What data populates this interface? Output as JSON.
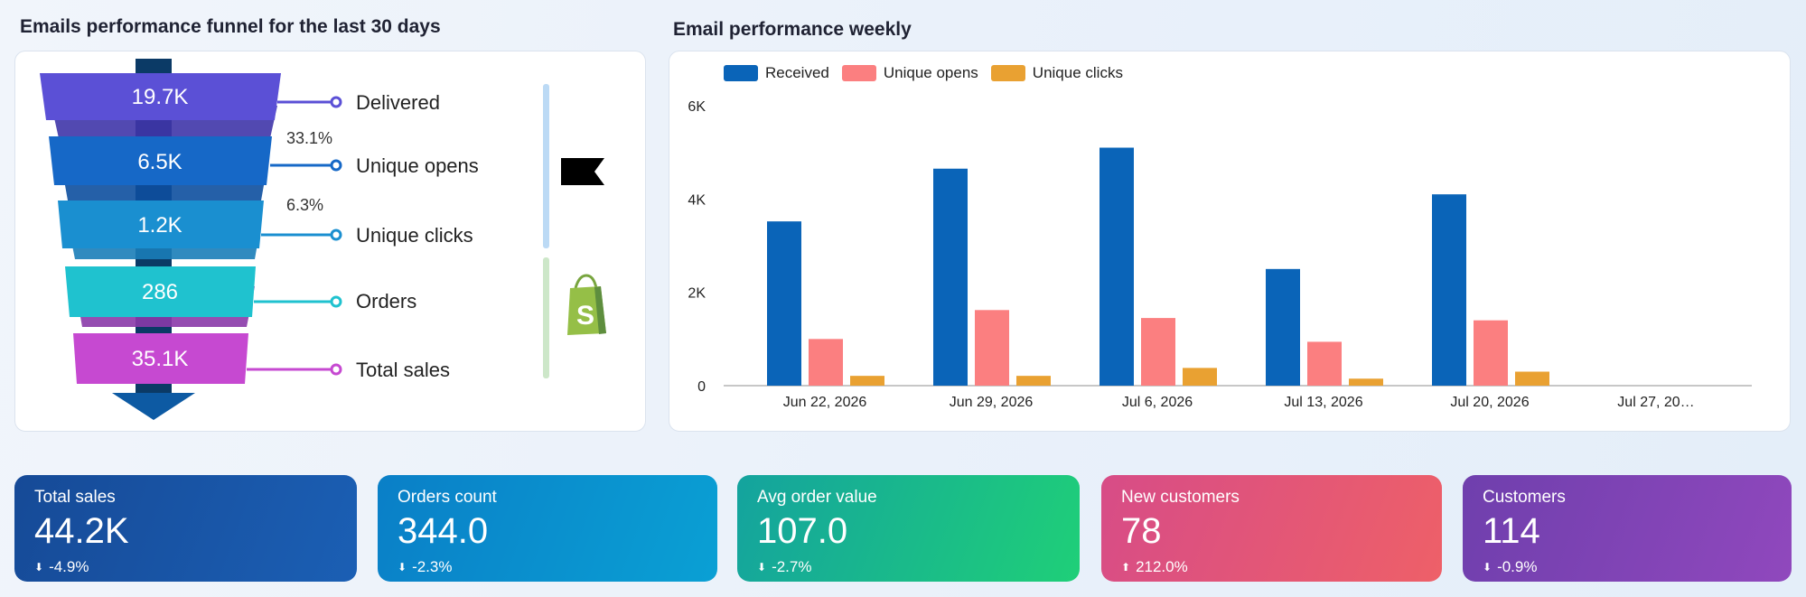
{
  "funnel_section": {
    "title": "Emails performance funnel for the last 30 days",
    "stages": [
      {
        "value": "19.7K",
        "label": "Delivered",
        "color": "#5b50d6"
      },
      {
        "value": "6.5K",
        "label": "Unique opens",
        "color": "#1668c7"
      },
      {
        "value": "1.2K",
        "label": "Unique clicks",
        "color": "#1a8fd0"
      },
      {
        "value": "286",
        "label": "Orders",
        "color": "#1fc2cf"
      },
      {
        "value": "35.1K",
        "label": "Total sales",
        "color": "#c649d1"
      }
    ],
    "conversion_rates": [
      "33.1%",
      "6.3%"
    ],
    "icons": [
      "flag-icon",
      "shopify-bag-icon"
    ]
  },
  "chart_section": {
    "title": "Email performance weekly"
  },
  "chart_data": {
    "type": "bar",
    "categories": [
      "Jun 22, 2026",
      "Jun 29, 2026",
      "Jul 6, 2026",
      "Jul 13, 2026",
      "Jul 20, 2026",
      "Jul 27, 20…"
    ],
    "series": [
      {
        "name": "Received",
        "color": "#0a64b8",
        "values": [
          3520,
          4650,
          5100,
          2500,
          4100,
          0
        ]
      },
      {
        "name": "Unique opens",
        "color": "#fb7f80",
        "values": [
          1000,
          1620,
          1450,
          940,
          1400,
          0
        ]
      },
      {
        "name": "Unique clicks",
        "color": "#e9a132",
        "values": [
          210,
          210,
          380,
          150,
          300,
          0
        ]
      }
    ],
    "yticks": [
      "0",
      "2K",
      "4K",
      "6K"
    ],
    "ylim": [
      0,
      6000
    ],
    "legend_position": "top-left"
  },
  "kpis": [
    {
      "title": "Total sales",
      "value": "44.2K",
      "change": "-4.9%",
      "direction": "down",
      "colors": [
        "#164a97",
        "#1b5fb4"
      ]
    },
    {
      "title": "Orders count",
      "value": "344.0",
      "change": "-2.3%",
      "direction": "down",
      "colors": [
        "#0a7fc7",
        "#0aa0d4"
      ]
    },
    {
      "title": "Avg order value",
      "value": "107.0",
      "change": "-2.7%",
      "direction": "down",
      "colors": [
        "#14a39e",
        "#1fcf78"
      ]
    },
    {
      "title": "New customers",
      "value": "78",
      "change": "212.0%",
      "direction": "up",
      "colors": [
        "#d74c87",
        "#ee6068"
      ]
    },
    {
      "title": "Customers",
      "value": "114",
      "change": "-0.9%",
      "direction": "down",
      "colors": [
        "#6f3fad",
        "#9048bd"
      ]
    }
  ]
}
